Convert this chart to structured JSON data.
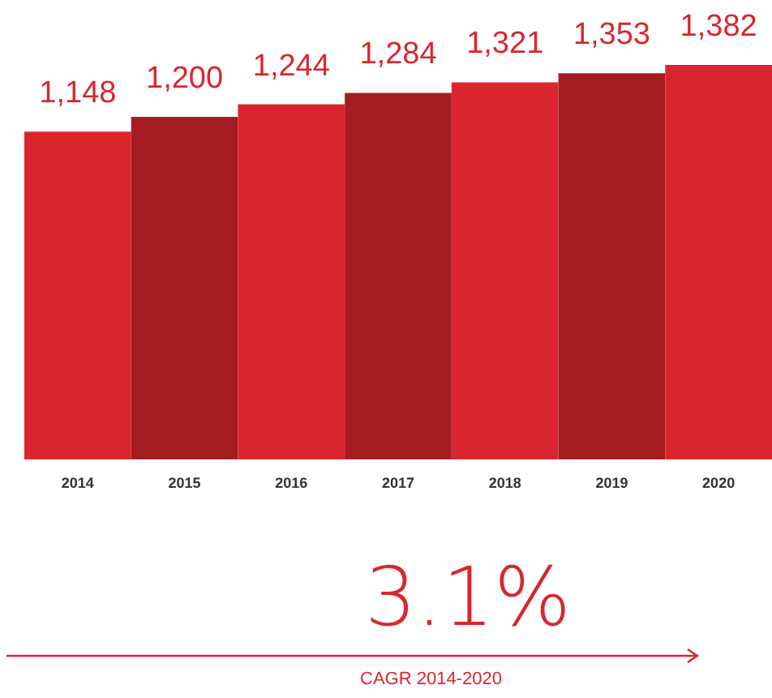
{
  "chart_data": {
    "type": "bar",
    "categories": [
      "2014",
      "2015",
      "2016",
      "2017",
      "2018",
      "2019",
      "2020"
    ],
    "values": [
      1148,
      1200,
      1244,
      1284,
      1321,
      1353,
      1382
    ],
    "value_labels": [
      "1,148",
      "1,200",
      "1,244",
      "1,284",
      "1,321",
      "1,353",
      "1,382"
    ],
    "colors": [
      "#d9262e",
      "#a51c22",
      "#d9262e",
      "#a51c22",
      "#d9262e",
      "#a51c22",
      "#d9262e"
    ],
    "annotations": [
      "3.1%",
      "CAGR 2014-2020"
    ]
  }
}
